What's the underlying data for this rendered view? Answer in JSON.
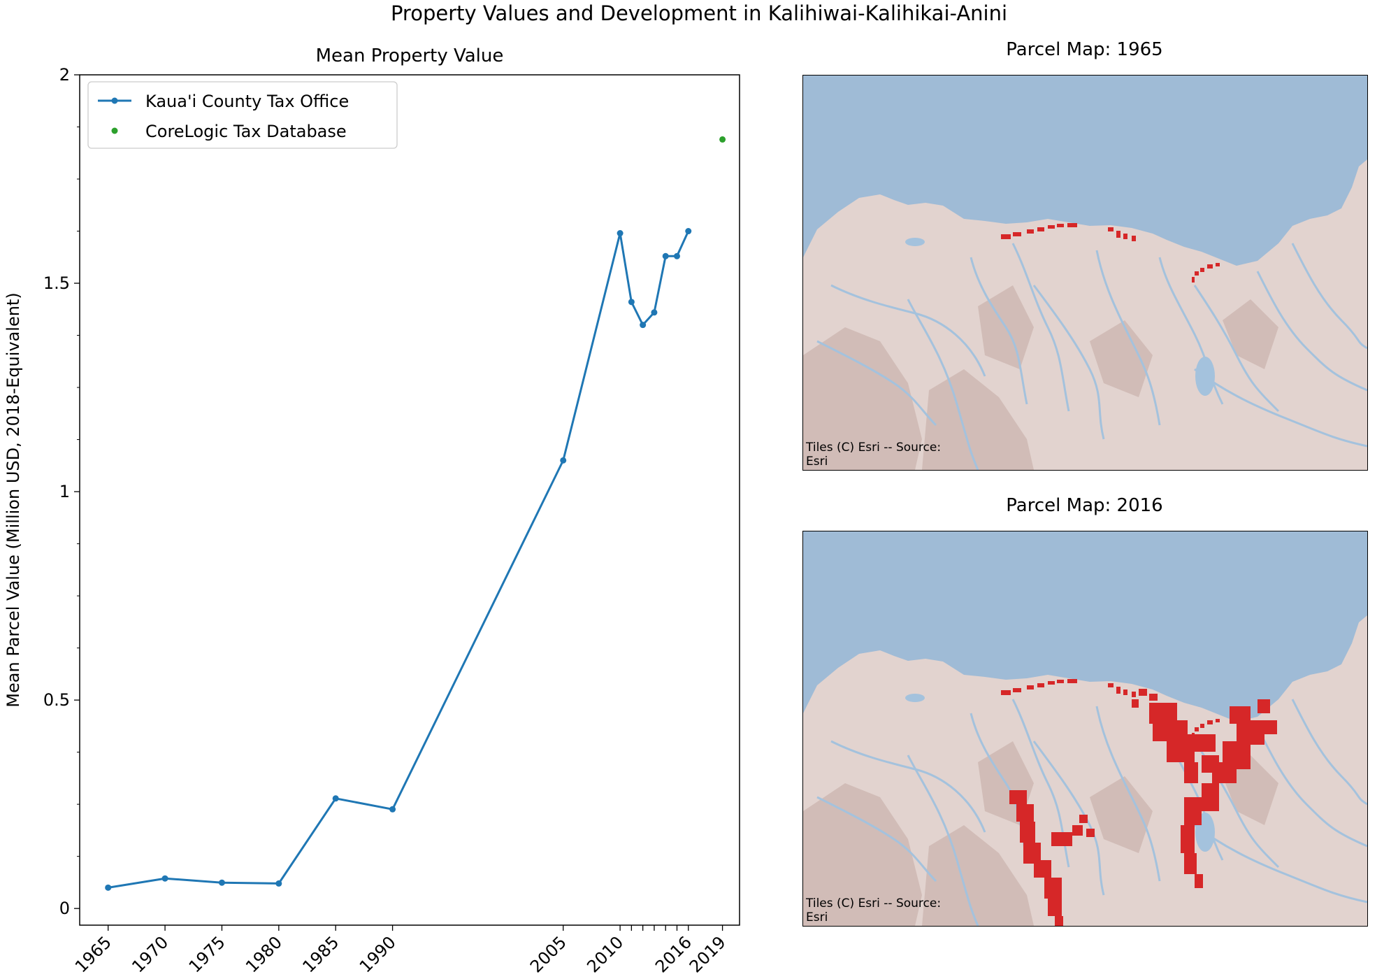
{
  "figure": {
    "title": "Property Values and Development in Kalihiwai-Kalihikai-Anini"
  },
  "chart_data": {
    "type": "line",
    "title": "Mean Property Value",
    "xlabel": "",
    "ylabel": "Mean Parcel Value (Million USD, 2018-Equivalent)",
    "xlim": [
      1962.5,
      2020.5
    ],
    "ylim": [
      -0.04,
      2.0
    ],
    "x_ticks": [
      1965,
      1970,
      1975,
      1980,
      1985,
      1990,
      2005,
      2010,
      2011,
      2012,
      2013,
      2014,
      2015,
      2016,
      2019
    ],
    "x_tick_labels": [
      "1965",
      "1970",
      "1975",
      "1980",
      "1985",
      "1990",
      "2005",
      "2010",
      "",
      "",
      "",
      "",
      "",
      "2016",
      "2019"
    ],
    "y_ticks": [
      0,
      0.5,
      1,
      1.5,
      2
    ],
    "y_tick_labels": [
      "0",
      "0.5",
      "1",
      "1.5",
      "2"
    ],
    "legend_position": "top-left",
    "series": [
      {
        "name": "Kaua'i County Tax Office",
        "style": "line-with-markers",
        "color": "#1f77b4",
        "x": [
          1965,
          1970,
          1975,
          1980,
          1985,
          1990,
          2005,
          2010,
          2011,
          2012,
          2013,
          2014,
          2015,
          2016
        ],
        "y": [
          0.05,
          0.072,
          0.062,
          0.06,
          0.264,
          0.238,
          1.075,
          1.62,
          1.455,
          1.4,
          1.43,
          1.565,
          1.565,
          1.625
        ]
      },
      {
        "name": "CoreLogic Tax Database",
        "style": "markers",
        "color": "#2ca02c",
        "x": [
          2019
        ],
        "y": [
          1.845
        ]
      }
    ]
  },
  "maps": [
    {
      "title": "Parcel Map: 1965",
      "attribution": "Tiles (C) Esri -- Source:\nEsri",
      "parcel_color": "#d62728"
    },
    {
      "title": "Parcel Map: 2016",
      "attribution": "Tiles (C) Esri -- Source:\nEsri",
      "parcel_color": "#d62728"
    }
  ],
  "colors": {
    "ocean": "#9fbbd6",
    "land": "#e2d3cf",
    "streams": "#a4c2dd"
  }
}
